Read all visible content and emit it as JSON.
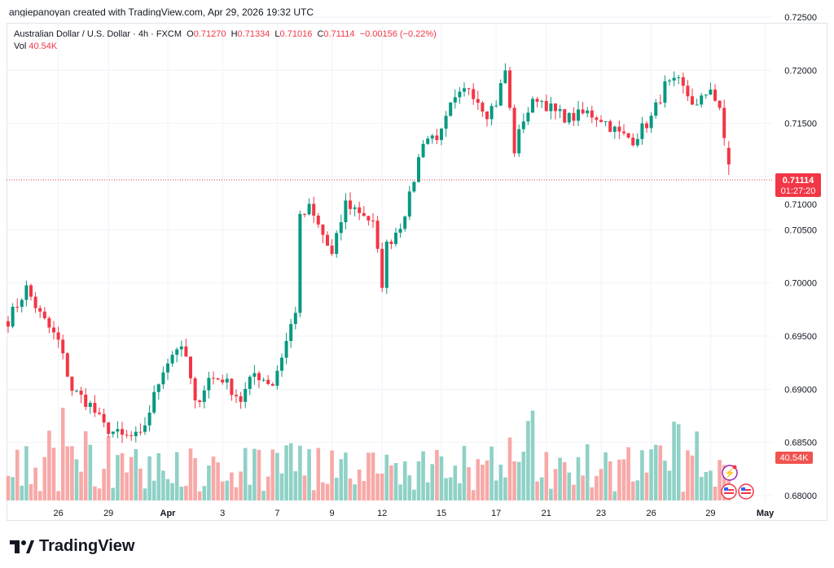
{
  "credit": "angiepanoyan created with TradingView.com, Apr 29, 2026 19:32 UTC",
  "legend": {
    "symbol": "Australian Dollar / U.S. Dollar · 4h · FXCM",
    "o_label": "O",
    "o": "0.71270",
    "h_label": "H",
    "h": "0.71334",
    "l_label": "L",
    "l": "0.71016",
    "c_label": "C",
    "c": "0.71114",
    "change": "−0.00156 (−0.22%)",
    "vol_label": "Vol",
    "vol": "40.54K"
  },
  "last_price_tag": {
    "price": "0.71114",
    "countdown": "01:27:20"
  },
  "volume_tag": "40.54K",
  "logo_text": "TradingView",
  "colors": {
    "up": "#089981",
    "down": "#f23645",
    "vol_up": "#8fd1c6",
    "vol_down": "#f7a9a7"
  },
  "chart_data": {
    "type": "candlestick",
    "title": "AUD/USD 4h FXCM",
    "ylim": [
      0.68,
      0.725
    ],
    "y_ticks": [
      "0.72500",
      "0.72000",
      "0.71500",
      "0.71000",
      "0.70500",
      "0.70000",
      "0.69500",
      "0.69000",
      "0.68500",
      "0.68000"
    ],
    "x_ticks": [
      {
        "label": "26",
        "bar": 11
      },
      {
        "label": "29",
        "bar": 22
      },
      {
        "label": "Apr",
        "bar": 35
      },
      {
        "label": "3",
        "bar": 47
      },
      {
        "label": "7",
        "bar": 59
      },
      {
        "label": "9",
        "bar": 71
      },
      {
        "label": "12",
        "bar": 82
      },
      {
        "label": "15",
        "bar": 95
      },
      {
        "label": "17",
        "bar": 107
      },
      {
        "label": "21",
        "bar": 118
      },
      {
        "label": "23",
        "bar": 130
      },
      {
        "label": "26",
        "bar": 141
      },
      {
        "label": "29",
        "bar": 154
      },
      {
        "label": "May",
        "bar": 166
      }
    ],
    "bar_count": 159,
    "close_path": [
      [
        0,
        0.6965
      ],
      [
        4,
        0.6995
      ],
      [
        7,
        0.697
      ],
      [
        11,
        0.6945
      ],
      [
        14,
        0.69
      ],
      [
        18,
        0.6885
      ],
      [
        21,
        0.6865
      ],
      [
        25,
        0.6855
      ],
      [
        29,
        0.6855
      ],
      [
        31,
        0.688
      ],
      [
        34,
        0.692
      ],
      [
        37,
        0.694
      ],
      [
        39,
        0.693
      ],
      [
        41,
        0.6885
      ],
      [
        44,
        0.691
      ],
      [
        47,
        0.691
      ],
      [
        51,
        0.689
      ],
      [
        54,
        0.6915
      ],
      [
        58,
        0.6905
      ],
      [
        61,
        0.6945
      ],
      [
        63,
        0.6975
      ],
      [
        64,
        0.706
      ],
      [
        66,
        0.707
      ],
      [
        69,
        0.7045
      ],
      [
        71,
        0.7025
      ],
      [
        74,
        0.7075
      ],
      [
        78,
        0.7065
      ],
      [
        80,
        0.7055
      ],
      [
        82,
        0.7
      ],
      [
        83,
        0.7035
      ],
      [
        86,
        0.7055
      ],
      [
        88,
        0.708
      ],
      [
        91,
        0.7135
      ],
      [
        95,
        0.714
      ],
      [
        97,
        0.7165
      ],
      [
        101,
        0.7185
      ],
      [
        105,
        0.716
      ],
      [
        107,
        0.717
      ],
      [
        109,
        0.72
      ],
      [
        111,
        0.7125
      ],
      [
        113,
        0.7155
      ],
      [
        116,
        0.7175
      ],
      [
        120,
        0.716
      ],
      [
        123,
        0.7155
      ],
      [
        127,
        0.716
      ],
      [
        130,
        0.7155
      ],
      [
        134,
        0.714
      ],
      [
        137,
        0.7135
      ],
      [
        141,
        0.7155
      ],
      [
        144,
        0.7185
      ],
      [
        147,
        0.7188
      ],
      [
        151,
        0.7165
      ],
      [
        154,
        0.7185
      ],
      [
        156,
        0.716
      ],
      [
        158,
        0.7111
      ]
    ],
    "last": {
      "open": 0.7127,
      "high": 0.71334,
      "low": 0.71016,
      "close": 0.71114,
      "volume": "40.54K"
    }
  }
}
